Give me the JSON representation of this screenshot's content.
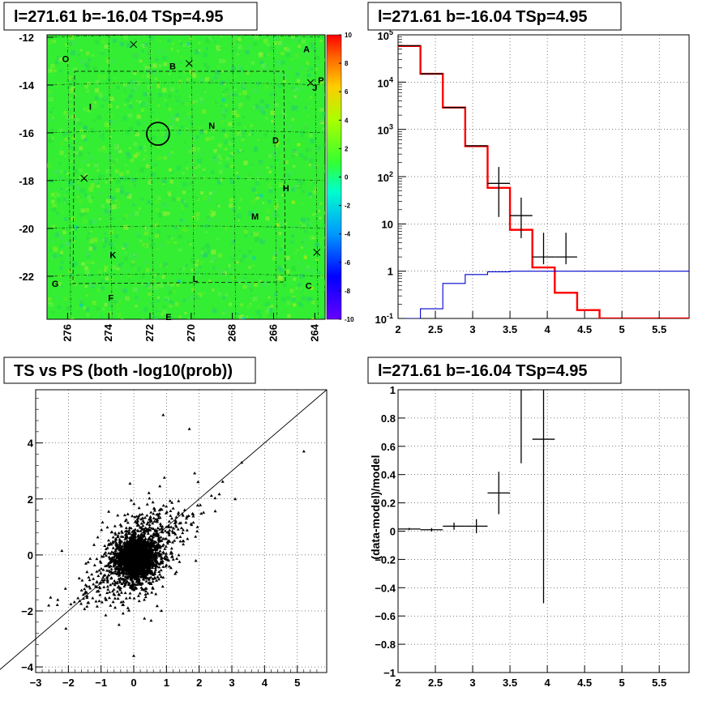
{
  "panels": {
    "map": {
      "title": "l=271.61 b=-16.04 TSp=4.95",
      "x_ticks": [
        "276",
        "274",
        "272",
        "270",
        "268",
        "266",
        "264"
      ],
      "y_ticks": [
        "-12",
        "-14",
        "-16",
        "-18",
        "-20",
        "-22"
      ],
      "palette_ticks": [
        "10",
        "8",
        "6",
        "4",
        "2",
        "0",
        "-2",
        "-4",
        "-6",
        "-8",
        "-10"
      ],
      "source_labels": [
        "A",
        "B",
        "C",
        "D",
        "E",
        "F",
        "G",
        "H",
        "I",
        "J",
        "K",
        "L",
        "M",
        "N",
        "O",
        "P"
      ],
      "background_color": "#33ee33"
    },
    "spectrum": {
      "title": "l=271.61 b=-16.04 TSp=4.95",
      "x_ticks": [
        "2",
        "2.5",
        "3",
        "3.5",
        "4",
        "4.5",
        "5",
        "5.5"
      ],
      "y_ticks": [
        "10^-1",
        "1",
        "10",
        "10^2",
        "10^3",
        "10^4",
        "10^5"
      ]
    },
    "scatter": {
      "title": "TS vs PS (both -log10(prob))",
      "x_ticks": [
        "−3",
        "−2",
        "−1",
        "0",
        "1",
        "2",
        "3",
        "4",
        "5"
      ],
      "y_ticks": [
        "−4",
        "−2",
        "0",
        "2",
        "4"
      ]
    },
    "residual": {
      "title": "l=271.61 b=-16.04 TSp=4.95",
      "ylabel": "(data-model)/model",
      "x_ticks": [
        "2",
        "2.5",
        "3",
        "3.5",
        "4",
        "4.5",
        "5",
        "5.5"
      ],
      "y_ticks": [
        "1",
        "0.8",
        "0.6",
        "0.4",
        "0.2",
        "0",
        "−0.2",
        "−0.4",
        "−0.6",
        "−0.8",
        "−1"
      ]
    }
  },
  "chart_data": [
    {
      "type": "heatmap",
      "title": "l=271.61 b=-16.04 TSp=4.95",
      "xlim": [
        277,
        263.5
      ],
      "ylim": [
        -23.8,
        -11.9
      ],
      "zlim": [
        -10,
        10
      ],
      "circle_center": [
        271.61,
        -16.04
      ],
      "labeled_sources": [
        {
          "label": "A",
          "l": 264.4,
          "b": -12.5
        },
        {
          "label": "B",
          "l": 270.9,
          "b": -13.2
        },
        {
          "label": "C",
          "l": 264.3,
          "b": -22.4
        },
        {
          "label": "D",
          "l": 265.9,
          "b": -16.3
        },
        {
          "label": "E",
          "l": 271.1,
          "b": -23.7
        },
        {
          "label": "F",
          "l": 273.9,
          "b": -22.9
        },
        {
          "label": "G",
          "l": 276.6,
          "b": -22.3
        },
        {
          "label": "H",
          "l": 265.4,
          "b": -18.3
        },
        {
          "label": "I",
          "l": 274.9,
          "b": -14.9
        },
        {
          "label": "J",
          "l": 264.0,
          "b": -14.1
        },
        {
          "label": "K",
          "l": 273.8,
          "b": -21.1
        },
        {
          "label": "L",
          "l": 269.8,
          "b": -22.1
        },
        {
          "label": "M",
          "l": 266.9,
          "b": -19.5
        },
        {
          "label": "N",
          "l": 269.0,
          "b": -15.7
        },
        {
          "label": "O",
          "l": 276.1,
          "b": -12.9
        },
        {
          "label": "P",
          "l": 263.7,
          "b": -13.8
        }
      ]
    },
    {
      "type": "line",
      "title": "l=271.61 b=-16.04 TSp=4.95",
      "log_y": true,
      "xlim": [
        2,
        5.9
      ],
      "ylim": [
        0.1,
        100000
      ],
      "bin_edges": [
        2,
        2.3,
        2.6,
        2.9,
        3.2,
        3.5,
        3.8,
        4.1,
        4.4,
        4.7,
        5.0,
        5.3,
        5.6,
        5.9
      ],
      "series": [
        {
          "values": [
            58000,
            15000,
            2900,
            440,
            58,
            7.5,
            1.2,
            0.35,
            0.15,
            0.1,
            0.1,
            0.1,
            0.1
          ],
          "color": "#ff0000"
        },
        {
          "values": [
            0.1,
            0.16,
            0.55,
            0.85,
            0.97,
            1.0,
            1.0,
            1.0,
            1.0,
            1.0,
            1.0,
            1.0,
            1.0
          ],
          "color": "#0000cc"
        }
      ],
      "data_points": [
        {
          "x": 2.15,
          "y": 59000,
          "xerr": 0.15,
          "yerr": [
            0,
            0
          ]
        },
        {
          "x": 2.45,
          "y": 15000,
          "xerr": 0.15,
          "yerr": [
            0,
            0
          ]
        },
        {
          "x": 2.75,
          "y": 2900,
          "xerr": 0.15,
          "yerr": [
            0,
            0
          ]
        },
        {
          "x": 3.05,
          "y": 450,
          "xerr": 0.15,
          "yerr": [
            0,
            0
          ]
        },
        {
          "x": 3.35,
          "y": 72,
          "xerr": 0.15,
          "yerr": [
            58,
            88
          ]
        },
        {
          "x": 3.65,
          "y": 15,
          "xerr": 0.15,
          "yerr": [
            10,
            21
          ]
        },
        {
          "x": 3.95,
          "y": 2,
          "xerr": 0.15,
          "yerr": [
            0.6,
            4.5
          ]
        },
        {
          "x": 4.25,
          "y": 2,
          "xerr": 0.15,
          "yerr": [
            0.6,
            4.5
          ]
        }
      ]
    },
    {
      "type": "scatter",
      "title": "TS vs PS (both -log10(prob))",
      "xlim": [
        -3,
        5.9
      ],
      "ylim": [
        -4.2,
        5.9
      ],
      "diagonal": true,
      "highlight_points": [
        [
          5.2,
          3.7
        ],
        [
          3.1,
          2.0
        ],
        [
          3.3,
          3.3
        ],
        [
          0.9,
          5.0
        ],
        [
          1.7,
          4.5
        ],
        [
          -2.2,
          0.15
        ],
        [
          -1.1,
          -1.3
        ],
        [
          0.0,
          -3.6
        ]
      ],
      "n_points": 2600
    },
    {
      "type": "scatter",
      "title": "l=271.61 b=-16.04 TSp=4.95",
      "ylabel": "(data-model)/model",
      "xlim": [
        2,
        5.9
      ],
      "ylim": [
        -1,
        1
      ],
      "points": [
        {
          "x": 2.15,
          "y": 0.015,
          "xerr": 0.15,
          "yerr": 0.008
        },
        {
          "x": 2.45,
          "y": 0.01,
          "xerr": 0.15,
          "yerr": 0.012
        },
        {
          "x": 2.75,
          "y": 0.035,
          "xerr": 0.15,
          "yerr": 0.025
        },
        {
          "x": 3.05,
          "y": 0.035,
          "xerr": 0.15,
          "yerr": 0.05
        },
        {
          "x": 3.35,
          "y": 0.27,
          "xerr": 0.15,
          "yerr": 0.15
        },
        {
          "x": 3.65,
          "y": 1.0,
          "xerr": 0.15,
          "yerr": 0.52
        },
        {
          "x": 3.95,
          "y": 0.65,
          "xerr": 0.15,
          "yerr": 1.16
        }
      ]
    }
  ]
}
